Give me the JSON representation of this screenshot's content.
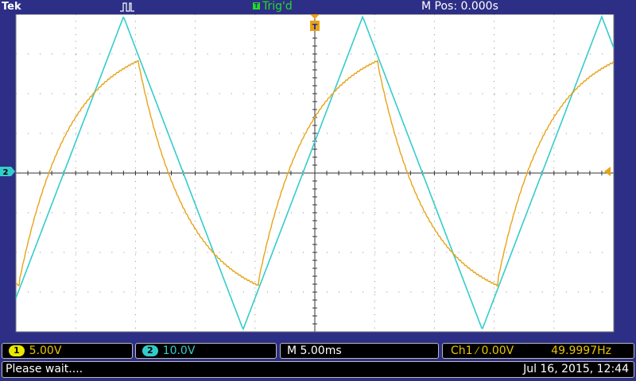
{
  "header": {
    "brand": "Tek",
    "trigger_status": "Trig'd",
    "trigger_badge": "T",
    "m_pos": "M Pos: 0.000s"
  },
  "channels": [
    {
      "id": "1",
      "scale": "5.00V",
      "color": "#e8a317"
    },
    {
      "id": "2",
      "scale": "10.0V",
      "color": "#33cccc"
    }
  ],
  "timebase": "M 5.00ms",
  "trigger": {
    "label": "Ch1",
    "level": "0.00V",
    "frequency": "49.9997Hz"
  },
  "status": {
    "message": "Please wait....",
    "datetime": "Jul 16, 2015, 12:44"
  },
  "markers": {
    "ground_ch2": "2",
    "trigger_marker": "T"
  },
  "colors": {
    "background": "#2d2f86",
    "grid": "#ffffff",
    "ch1": "#e8a317",
    "ch2": "#33cccc"
  }
}
